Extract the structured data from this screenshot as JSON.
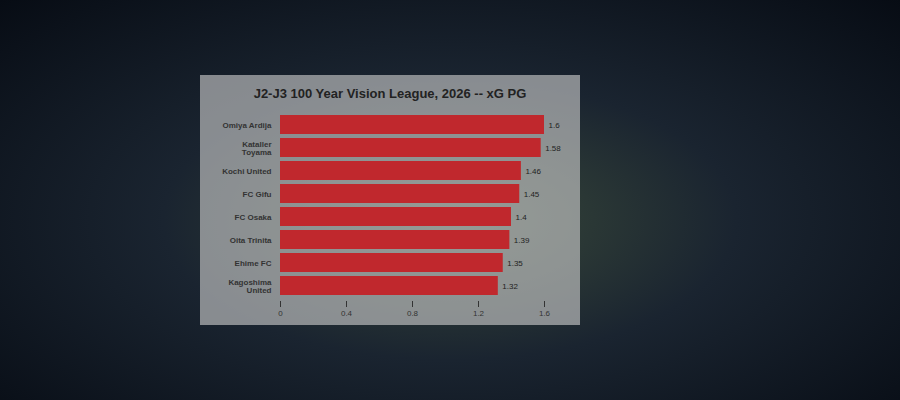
{
  "chart_data": {
    "type": "bar",
    "orientation": "horizontal",
    "title": "J2-J3 100 Year Vision League, 2026 -- xG PG",
    "categories": [
      "Omiya Ardija",
      "Kataller Toyama",
      "Kochi United",
      "FC Gifu",
      "FC Osaka",
      "Oita Trinita",
      "Ehime FC",
      "Kagoshima United"
    ],
    "values": [
      1.6,
      1.58,
      1.46,
      1.45,
      1.4,
      1.39,
      1.35,
      1.32
    ],
    "color": "#c0282d",
    "xlim": [
      0,
      1.6
    ],
    "xticks": [
      0,
      0.4,
      0.8,
      1.2,
      1.6
    ],
    "grid": false,
    "data_labels": true
  }
}
